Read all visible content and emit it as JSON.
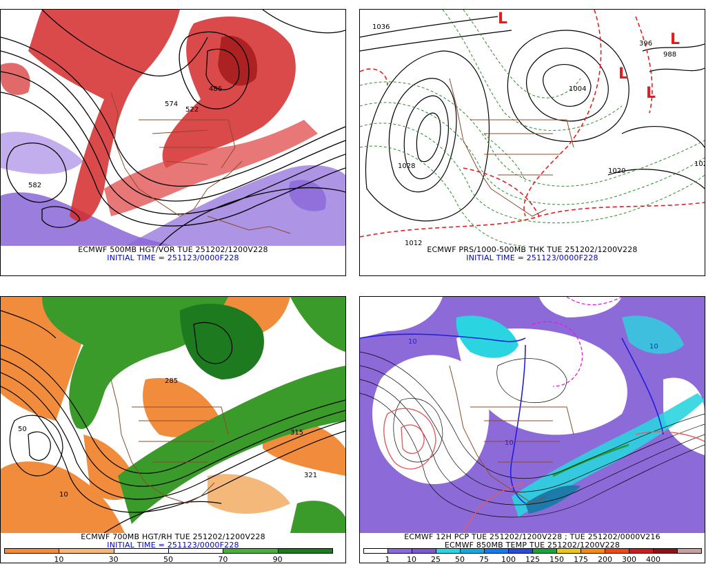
{
  "panels": [
    {
      "id": "p500",
      "caption": "ECMWF 500MB HGT/VOR TUE 251202/1200V228",
      "subcaption": "INITIAL TIME = 251123/0000F228",
      "contour_labels": [
        "574",
        "522",
        "582",
        "486"
      ]
    },
    {
      "id": "pprs",
      "caption": "ECMWF PRS/1000-500MB THK TUE 251202/1200V228",
      "subcaption": "INITIAL TIME = 251123/0000F228",
      "contour_labels": [
        "1036",
        "1028",
        "1004",
        "1020",
        "396",
        "988",
        "1012",
        "102"
      ],
      "markers": [
        "L",
        "L",
        "L",
        "L"
      ]
    },
    {
      "id": "p700",
      "caption": "ECMWF 700MB HGT/RH TUE 251202/1200V228",
      "subcaption": "INITIAL TIME = 251123/0000F228",
      "contour_labels": [
        "285",
        "315",
        "321",
        "50",
        "10"
      ],
      "legend": {
        "colors": [
          "#f08c3c",
          "#f4b87a",
          "#ffffff",
          "#ffffff",
          "#4cae3c",
          "#1e7a1e"
        ],
        "labels": [
          "10",
          "30",
          "50",
          "70",
          "90"
        ]
      }
    },
    {
      "id": "ppcp",
      "caption": "ECMWF 12H PCP TUE 251202/1200V228 ; TUE 251202/0000V216",
      "subcaption": "ECMWF 850MB TEMP TUE 251202/1200V228",
      "contour_labels": [
        "10",
        "10",
        "10"
      ],
      "legend": {
        "colors": [
          "#ffffff",
          "#8c6ad8",
          "#7a5cc8",
          "#2ad4e0",
          "#1aa8d8",
          "#1a78e8",
          "#2a4cd0",
          "#1ea03c",
          "#e8c81e",
          "#f08c1e",
          "#e84a1e",
          "#c81e1e",
          "#8c1414",
          "#c8a0a0"
        ],
        "labels": [
          "1",
          "10",
          "25",
          "50",
          "75",
          "100",
          "125",
          "150",
          "175",
          "200",
          "300",
          "400"
        ]
      }
    }
  ]
}
